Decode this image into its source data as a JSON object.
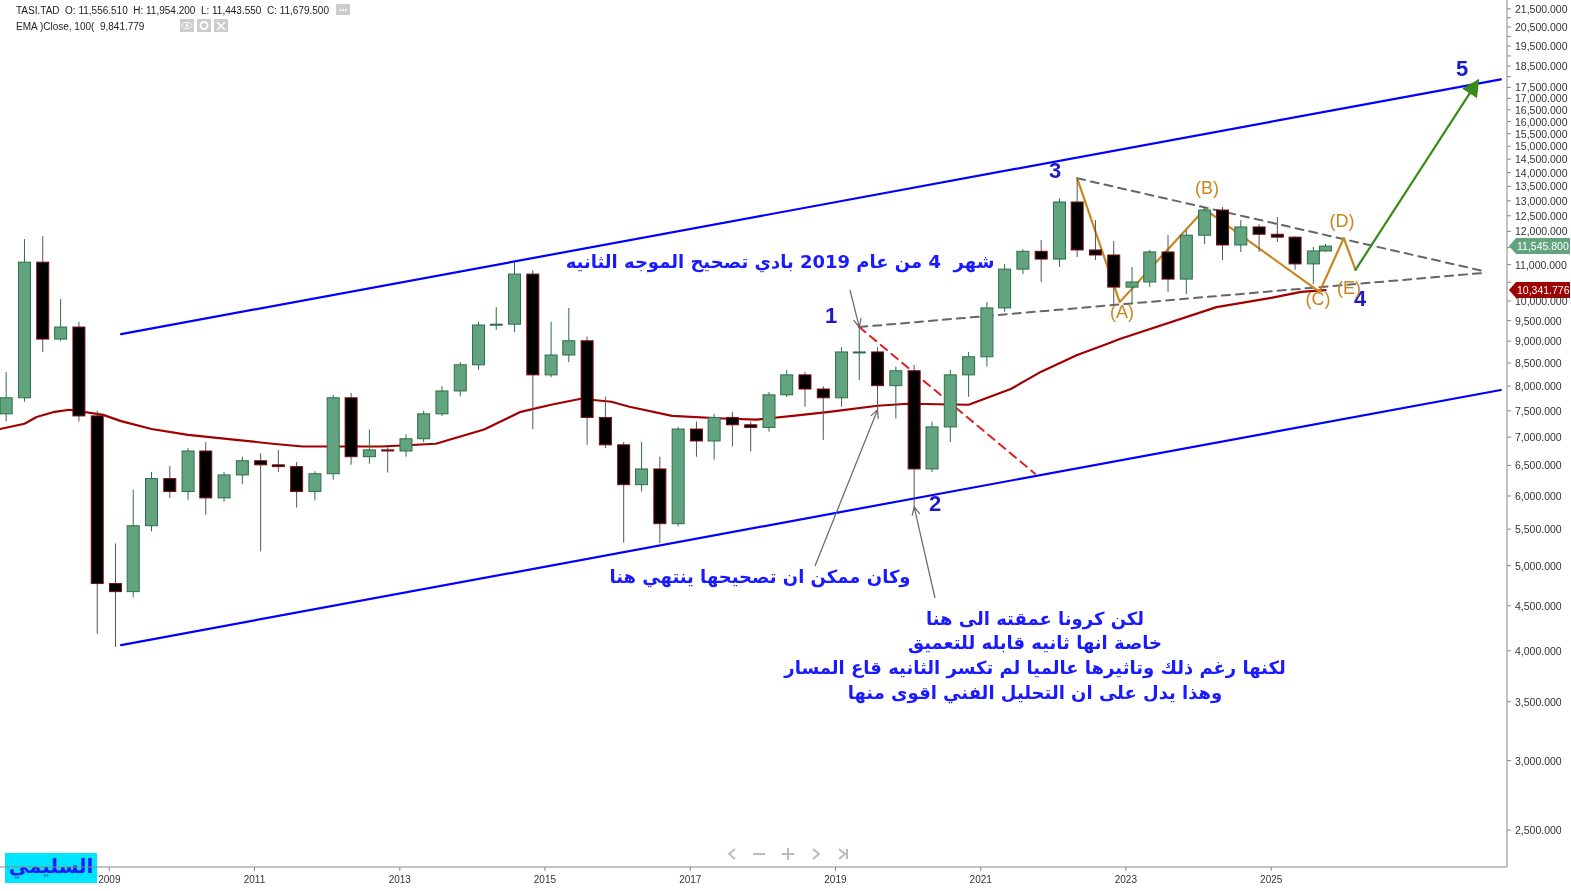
{
  "chart_data": {
    "type": "candlestick",
    "title": "TASI.TAD  O: 11,556.510  H: 11,954.200  L: 11,443.550  C: 11,679.500",
    "subtitle": "EMA )Close, 100(  9,841.779",
    "log": "y",
    "xlim": [
      "2007-07",
      "2028-04"
    ],
    "ylim": [
      2270,
      22000
    ],
    "xticks": [
      "2009",
      "2011",
      "2013",
      "2015",
      "2017",
      "2019",
      "2021",
      "2023",
      "2025"
    ],
    "yticks": [
      {
        "value": 2500,
        "label": "2,500.000"
      },
      {
        "value": 3000,
        "label": "3,000.000"
      },
      {
        "value": 3500,
        "label": "3,500.000"
      },
      {
        "value": 4000,
        "label": "4,000.000"
      },
      {
        "value": 4500,
        "label": "4,500.000"
      },
      {
        "value": 5000,
        "label": "5,000.000"
      },
      {
        "value": 5500,
        "label": "5,500.000"
      },
      {
        "value": 6000,
        "label": "6,000.000"
      },
      {
        "value": 6500,
        "label": "6,500.000"
      },
      {
        "value": 7000,
        "label": "7,000.000"
      },
      {
        "value": 7500,
        "label": "7,500.000"
      },
      {
        "value": 8000,
        "label": "8,000.000"
      },
      {
        "value": 8500,
        "label": "8,500.000"
      },
      {
        "value": 9000,
        "label": "9,000.000"
      },
      {
        "value": 9500,
        "label": "9,500.000"
      },
      {
        "value": 10000,
        "label": "10,000.000"
      },
      {
        "value": 10500,
        "label": null
      },
      {
        "value": 11000,
        "label": "11,000.000"
      },
      {
        "value": 11500,
        "label": null
      },
      {
        "value": 12000,
        "label": "12,000.000"
      },
      {
        "value": 12500,
        "label": "12,500.000"
      },
      {
        "value": 13000,
        "label": "13,000.000"
      },
      {
        "value": 13500,
        "label": "13,500.000"
      },
      {
        "value": 14000,
        "label": "14,000.000"
      },
      {
        "value": 14500,
        "label": "14,500.000"
      },
      {
        "value": 15000,
        "label": "15,000.000"
      },
      {
        "value": 15500,
        "label": "15,500.000"
      },
      {
        "value": 16000,
        "label": "16,000.000"
      },
      {
        "value": 16500,
        "label": "16,500.000"
      },
      {
        "value": 17000,
        "label": "17,000.000"
      },
      {
        "value": 17500,
        "label": "17,500.000"
      },
      {
        "value": 18000,
        "label": null
      },
      {
        "value": 18500,
        "label": "18,500.000"
      },
      {
        "value": 19000,
        "label": null
      },
      {
        "value": 19500,
        "label": "19,500.000"
      },
      {
        "value": 20000,
        "label": null
      },
      {
        "value": 20500,
        "label": "20,500.000"
      },
      {
        "value": 21000,
        "label": null
      },
      {
        "value": 21500,
        "label": "21,500.000"
      }
    ],
    "x": [
      "2007-08",
      "2007-11",
      "2008-02",
      "2008-05",
      "2008-08",
      "2008-11",
      "2009-02",
      "2009-05",
      "2009-08",
      "2009-11",
      "2010-02",
      "2010-05",
      "2010-08",
      "2010-11",
      "2011-02",
      "2011-05",
      "2011-08",
      "2011-11",
      "2012-02",
      "2012-05",
      "2012-08",
      "2012-11",
      "2013-02",
      "2013-05",
      "2013-08",
      "2013-11",
      "2014-02",
      "2014-05",
      "2014-08",
      "2014-11",
      "2015-02",
      "2015-05",
      "2015-08",
      "2015-11",
      "2016-02",
      "2016-05",
      "2016-08",
      "2016-11",
      "2017-02",
      "2017-05",
      "2017-08",
      "2017-11",
      "2018-02",
      "2018-05",
      "2018-08",
      "2018-11",
      "2019-02",
      "2019-05",
      "2019-08",
      "2019-11",
      "2020-02",
      "2020-05",
      "2020-08",
      "2020-11",
      "2021-02",
      "2021-05",
      "2021-08",
      "2021-11",
      "2022-02",
      "2022-05",
      "2022-08",
      "2022-11",
      "2023-02",
      "2023-05",
      "2023-08",
      "2023-11",
      "2024-02",
      "2024-05",
      "2024-08",
      "2024-11",
      "2025-02",
      "2025-05",
      "2025-08",
      "2025-10"
    ],
    "ohlc": [
      [
        7440,
        8300,
        7300,
        7760
      ],
      [
        7760,
        11760,
        7680,
        11070
      ],
      [
        11070,
        11850,
        8750,
        9050
      ],
      [
        9050,
        10050,
        9000,
        9340
      ],
      [
        9340,
        9470,
        7290,
        7400
      ],
      [
        7400,
        7500,
        4180,
        4770
      ],
      [
        4770,
        5300,
        4040,
        4670
      ],
      [
        4670,
        6100,
        4600,
        5550
      ],
      [
        5550,
        6390,
        5470,
        6280
      ],
      [
        6280,
        6490,
        5970,
        6070
      ],
      [
        6070,
        6800,
        5940,
        6750
      ],
      [
        6750,
        6910,
        5710,
        5970
      ],
      [
        5970,
        6390,
        5910,
        6340
      ],
      [
        6340,
        6650,
        6190,
        6580
      ],
      [
        6580,
        6710,
        5190,
        6510
      ],
      [
        6510,
        6770,
        6390,
        6480
      ],
      [
        6480,
        6560,
        5820,
        6070
      ],
      [
        6070,
        6400,
        5930,
        6360
      ],
      [
        6360,
        7820,
        6260,
        7760
      ],
      [
        7760,
        7860,
        6510,
        6650
      ],
      [
        6650,
        7140,
        6530,
        6770
      ],
      [
        6770,
        6820,
        6380,
        6750
      ],
      [
        6750,
        7050,
        6650,
        6970
      ],
      [
        6970,
        7500,
        6910,
        7440
      ],
      [
        7440,
        8000,
        7400,
        7900
      ],
      [
        7900,
        8520,
        7790,
        8460
      ],
      [
        8460,
        9470,
        8350,
        9390
      ],
      [
        9390,
        9840,
        9270,
        9410
      ],
      [
        9410,
        11070,
        9220,
        10730
      ],
      [
        10730,
        10840,
        7150,
        8240
      ],
      [
        8240,
        9470,
        8190,
        8680
      ],
      [
        8680,
        9820,
        8520,
        9010
      ],
      [
        9010,
        9110,
        6860,
        7370
      ],
      [
        7370,
        7780,
        6800,
        6860
      ],
      [
        6860,
        6910,
        5310,
        6180
      ],
      [
        6180,
        6910,
        6070,
        6440
      ],
      [
        6440,
        6650,
        5300,
        5580
      ],
      [
        5580,
        7190,
        5540,
        7150
      ],
      [
        7150,
        7290,
        6650,
        6930
      ],
      [
        6930,
        7440,
        6600,
        7370
      ],
      [
        7370,
        7480,
        6830,
        7230
      ],
      [
        7230,
        7290,
        6740,
        7180
      ],
      [
        7180,
        7880,
        7100,
        7820
      ],
      [
        7820,
        8350,
        7780,
        8240
      ],
      [
        8240,
        8300,
        7580,
        7940
      ],
      [
        7940,
        8000,
        6950,
        7760
      ],
      [
        7760,
        8860,
        7580,
        8750
      ],
      [
        8750,
        9340,
        8130,
        8750
      ],
      [
        8750,
        8860,
        7520,
        8010
      ],
      [
        8010,
        8420,
        7350,
        8330
      ],
      [
        8330,
        8460,
        5830,
        6440
      ],
      [
        6440,
        7290,
        6390,
        7190
      ],
      [
        7190,
        8350,
        6910,
        8240
      ],
      [
        8240,
        8750,
        7780,
        8640
      ],
      [
        8640,
        9970,
        8420,
        9820
      ],
      [
        9820,
        11020,
        9720,
        10870
      ],
      [
        10870,
        11450,
        10730,
        11390
      ],
      [
        11390,
        11730,
        10510,
        11160
      ],
      [
        11160,
        13080,
        10930,
        12960
      ],
      [
        12960,
        13790,
        11220,
        11430
      ],
      [
        11430,
        12360,
        11130,
        11280
      ],
      [
        11280,
        11700,
        9900,
        10370
      ],
      [
        10370,
        10930,
        9920,
        10510
      ],
      [
        10510,
        11430,
        10370,
        11370
      ],
      [
        11370,
        11880,
        10240,
        10590
      ],
      [
        10590,
        12040,
        10180,
        11880
      ],
      [
        11880,
        12790,
        11610,
        12690
      ],
      [
        12690,
        12790,
        11130,
        11580
      ],
      [
        11580,
        12360,
        11370,
        12140
      ],
      [
        12140,
        12230,
        11370,
        11910
      ],
      [
        11910,
        12460,
        11670,
        11820
      ],
      [
        11820,
        11850,
        10850,
        11020
      ],
      [
        11020,
        11520,
        10450,
        11400
      ],
      [
        11400,
        11610,
        11370,
        11546
      ]
    ],
    "series": [
      {
        "type": "line",
        "color": "#a00000",
        "x": [
          "2007-07",
          "2007-11",
          "2008-01",
          "2008-04",
          "2008-06-16",
          "2008-12",
          "2009-03",
          "2009-08",
          "2010-02",
          "2010-10",
          "2011-04",
          "2011-09",
          "2012-10",
          "2013-07",
          "2014-03",
          "2014-09",
          "2015-02",
          "2015-07",
          "2015-12",
          "2016-03",
          "2016-10",
          "2017-06-16",
          "2017-12",
          "2018-06",
          "2018-12",
          "2019-08",
          "2020-01",
          "2020-11",
          "2021-06",
          "2021-11",
          "2022-05",
          "2022-10",
          "2022-12",
          "2024-04",
          "2025-01",
          "2025-06",
          "2025-10"
        ],
        "values": [
          7150,
          7250,
          7380,
          7480,
          7520,
          7420,
          7300,
          7150,
          7040,
          6950,
          6880,
          6830,
          6830,
          6880,
          7140,
          7480,
          7620,
          7740,
          7680,
          7580,
          7400,
          7350,
          7330,
          7400,
          7480,
          7600,
          7640,
          7620,
          7940,
          8310,
          8680,
          8940,
          9050,
          9840,
          10080,
          10240,
          10290
        ]
      },
      {
        "type": "line",
        "color": "#0000ff",
        "x": [
          "2009-03",
          "2028-03"
        ],
        "values": [
          9170,
          17870
        ]
      },
      {
        "type": "line",
        "color": "#0000ff",
        "x": [
          "2009-03",
          "2028-03"
        ],
        "values": [
          4060,
          7920
        ]
      },
      {
        "type": "line",
        "color": "#666666",
        "line_style": "dashed",
        "x": [
          "2022-05",
          "2027-12"
        ],
        "values": [
          13790,
          10820
        ]
      },
      {
        "type": "line",
        "color": "#666666",
        "line_style": "dashed",
        "x": [
          "2019-05",
          "2027-12"
        ],
        "values": [
          9340,
          10760
        ]
      },
      {
        "type": "line",
        "color": "#e02020",
        "line_style": "dashed",
        "x": [
          "2019-05",
          "2021-10"
        ],
        "values": [
          9340,
          6360
        ]
      },
      {
        "type": "line",
        "color": "#c8861e",
        "x": [
          "2022-05",
          "2022-12",
          "2024-02",
          "2025-09",
          "2026-01",
          "2026-03"
        ],
        "values": [
          13790,
          9970,
          12720,
          10240,
          11790,
          10850
        ]
      },
      {
        "type": "line",
        "color": "#3a8a1a",
        "x": [
          "2026-03",
          "2027-11"
        ],
        "values": [
          10850,
          17730
        ]
      }
    ],
    "annotations": [
      "1",
      "2",
      "3",
      "4",
      "5",
      "(A)",
      "(B)",
      "(C)",
      "(D)",
      "(E)",
      {
        "text": "شهر  4 من عام 2019 بادي تصحيح الموجه الثانيه",
        "x": "2019-05",
        "y": 9340
      },
      {
        "text": "وكان ممكن ان تصحيحها ينتهي هنا",
        "x": "2019-08",
        "y": 7520
      },
      {
        "text": "لكن كرونا عمقته الى هنا",
        "x": "2020-02",
        "y": 5830
      },
      "خاصة انها ثانيه قابله للتعميق",
      "لكنها رغم ذلك وتاثيرها عالميا لم تكسر الثانيه قاع المسار",
      "وهذا يدل على ان التحليل الفني اقوى منها",
      "11,545.800",
      "10,341.776",
      "السليمي"
    ]
  }
}
